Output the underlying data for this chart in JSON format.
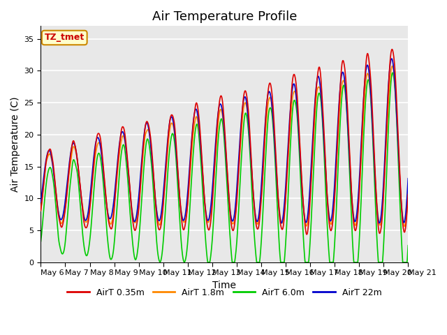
{
  "title": "Air Temperature Profile",
  "xlabel": "Time",
  "ylabel": "Air Temperature (C)",
  "annotation_text": "TZ_tmet",
  "annotation_bg": "#ffffcc",
  "annotation_border": "#cc8800",
  "annotation_text_color": "#cc0000",
  "ylim": [
    0,
    37
  ],
  "yticks": [
    0,
    5,
    10,
    15,
    20,
    25,
    30,
    35
  ],
  "x_labels": [
    "May 6",
    "May 7",
    "May 8",
    "May 9",
    "May 10",
    "May 11",
    "May 12",
    "May 13",
    "May 14",
    "May 15",
    "May 16",
    "May 17",
    "May 18",
    "May 19",
    "May 20",
    "May 21"
  ],
  "legend_labels": [
    "AirT 0.35m",
    "AirT 1.8m",
    "AirT 6.0m",
    "AirT 22m"
  ],
  "legend_colors": [
    "#dd0000",
    "#ff8800",
    "#00cc00",
    "#0000cc"
  ],
  "plot_bg": "#e8e8e8",
  "grid_color": "#ffffff",
  "title_fontsize": 13,
  "axis_label_fontsize": 10,
  "tick_fontsize": 8,
  "figsize": [
    6.4,
    4.8
  ],
  "dpi": 100
}
